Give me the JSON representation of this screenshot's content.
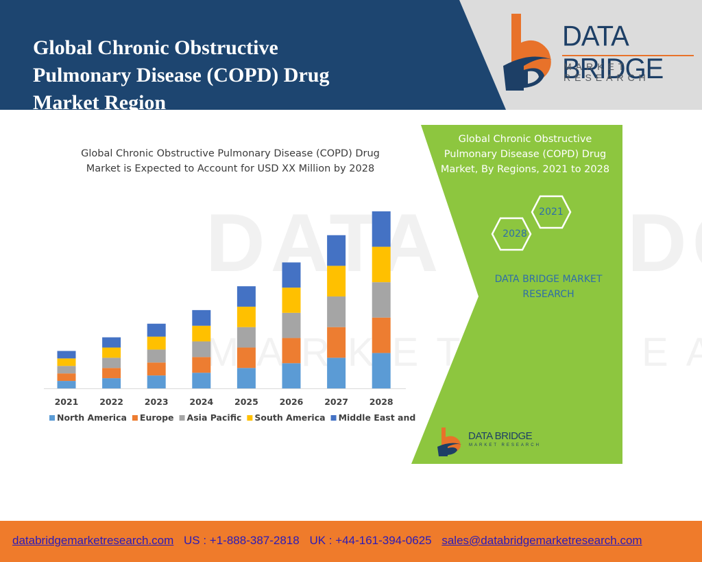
{
  "header": {
    "title": "Global Chronic Obstructive\nPulmonary Disease (COPD) Drug\nMarket Region",
    "logo_brand": "DATA BRIDGE",
    "logo_tagline": "MARKET RESEARCH",
    "watermark_brand": "DATA BRIDGE",
    "watermark_tagline": "MARKET RESEARCH"
  },
  "side_panel": {
    "title": "Global Chronic Obstructive\nPulmonary Disease (COPD) Drug\nMarket, By Regions, 2021 to 2028",
    "hex_labels": [
      "2021",
      "2028"
    ],
    "brand_text": "DATA BRIDGE MARKET\nRESEARCH",
    "small_logo_brand": "DATA BRIDGE",
    "small_logo_tagline": "MARKET RESEARCH"
  },
  "colors": {
    "header_bg": "#1d4570",
    "green_panel": "#8dc63f",
    "footer_bg": "#ef7b2b",
    "north_america": "#5b9bd5",
    "europe": "#ed7d31",
    "asia_pacific": "#a5a5a5",
    "south_america": "#ffc000",
    "middle_east_africa": "#4472c4"
  },
  "chart_data": {
    "type": "bar",
    "stacked": true,
    "title": "Global Chronic Obstructive Pulmonary Disease (COPD) Drug\nMarket is Expected to Account for USD XX Million by 2028",
    "categories": [
      "2021",
      "2022",
      "2023",
      "2024",
      "2025",
      "2026",
      "2027",
      "2028"
    ],
    "series": [
      {
        "name": "North America",
        "color": "#5b9bd5",
        "values": [
          11,
          15,
          19,
          23,
          30,
          37,
          45,
          52
        ]
      },
      {
        "name": "Europe",
        "color": "#ed7d31",
        "values": [
          11,
          15,
          19,
          23,
          30,
          37,
          45,
          52
        ]
      },
      {
        "name": "Asia Pacific",
        "color": "#a5a5a5",
        "values": [
          11,
          15,
          19,
          23,
          30,
          37,
          45,
          52
        ]
      },
      {
        "name": "South America",
        "color": "#ffc000",
        "values": [
          11,
          15,
          19,
          23,
          30,
          37,
          45,
          52
        ]
      },
      {
        "name": "Middle East and Africa",
        "color": "#4472c4",
        "values": [
          11,
          15,
          19,
          23,
          30,
          37,
          45,
          52
        ]
      }
    ],
    "ylim": [
      0,
      260
    ],
    "grid": false,
    "legend": "bottom"
  },
  "footer": {
    "website": "databridgemarketresearch.com",
    "us_phone": "US : +1-888-387-2818",
    "uk_phone": "UK : +44-161-394-0625",
    "email": "sales@databridgemarketresearch.com"
  }
}
